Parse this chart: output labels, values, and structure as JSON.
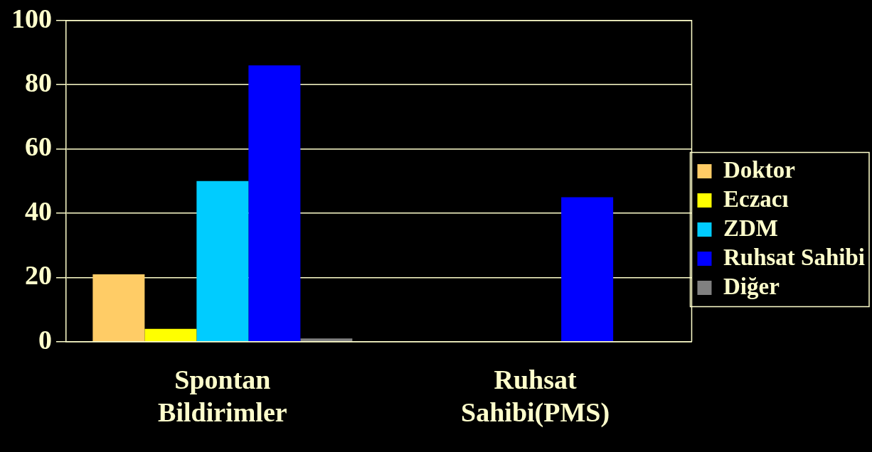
{
  "chart_data": {
    "type": "bar",
    "categories": [
      "Spontan Bildirimler",
      "Ruhsat Sahibi(PMS)"
    ],
    "series": [
      {
        "name": "Doktor",
        "color": "#ffcc66",
        "values": [
          21,
          null
        ]
      },
      {
        "name": "Eczacı",
        "color": "#ffff00",
        "values": [
          4,
          null
        ]
      },
      {
        "name": "ZDM",
        "color": "#00ccff",
        "values": [
          50,
          null
        ]
      },
      {
        "name": "Ruhsat Sahibi",
        "color": "#0000ff",
        "values": [
          86,
          45
        ]
      },
      {
        "name": "Diğer",
        "color": "#808080",
        "values": [
          1,
          null
        ]
      }
    ],
    "ylim": [
      0,
      100
    ],
    "yticks": [
      0,
      20,
      40,
      60,
      80,
      100
    ],
    "grid": "y",
    "legend": "right"
  }
}
